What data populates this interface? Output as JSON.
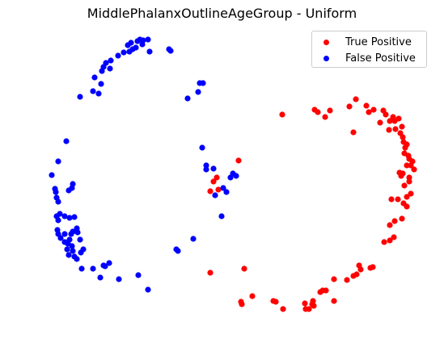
{
  "chart_data": {
    "type": "scatter",
    "title": "MiddlePhalanxOutlineAgeGroup - Uniform",
    "xlabel": "",
    "ylabel": "",
    "axes_visible": false,
    "grid": false,
    "legend_position": "top-right",
    "series": [
      {
        "name": "True Positive",
        "color": "#ff0000",
        "points": [
          [
            349,
            142
          ],
          [
            389,
            136
          ],
          [
            393,
            139
          ],
          [
            408,
            137
          ],
          [
            402,
            145
          ],
          [
            432,
            132
          ],
          [
            440,
            123
          ],
          [
            453,
            131
          ],
          [
            462,
            136
          ],
          [
            456,
            139
          ],
          [
            470,
            152
          ],
          [
            477,
            142
          ],
          [
            482,
            150
          ],
          [
            474,
            137
          ],
          [
            486,
            145
          ],
          [
            489,
            160
          ],
          [
            495,
            165
          ],
          [
            488,
            150
          ],
          [
            493,
            147
          ],
          [
            497,
            157
          ],
          [
            481,
            161
          ],
          [
            498,
            170
          ],
          [
            499,
            176
          ],
          [
            503,
            179
          ],
          [
            501,
            183
          ],
          [
            500,
            190
          ],
          [
            505,
            193
          ],
          [
            506,
            197
          ],
          [
            510,
            200
          ],
          [
            512,
            210
          ],
          [
            508,
            205
          ],
          [
            503,
            205
          ],
          [
            506,
            220
          ],
          [
            498,
            215
          ],
          [
            496,
            218
          ],
          [
            494,
            214
          ],
          [
            500,
            230
          ],
          [
            506,
            225
          ],
          [
            503,
            244
          ],
          [
            508,
            240
          ],
          [
            499,
            252
          ],
          [
            503,
            256
          ],
          [
            492,
            247
          ],
          [
            484,
            247
          ],
          [
            497,
            271
          ],
          [
            488,
            274
          ],
          [
            482,
            279
          ],
          [
            475,
            300
          ],
          [
            482,
            298
          ],
          [
            487,
            294
          ],
          [
            437,
            164
          ],
          [
            295,
            199
          ],
          [
            268,
            220
          ],
          [
            264,
            225
          ],
          [
            260,
            237
          ],
          [
            270,
            235
          ],
          [
            461,
            331
          ],
          [
            458,
            332
          ],
          [
            444,
            329
          ],
          [
            446,
            334
          ],
          [
            441,
            340
          ],
          [
            437,
            342
          ],
          [
            429,
            347
          ],
          [
            413,
            346
          ],
          [
            399,
            360
          ],
          [
            403,
            360
          ],
          [
            396,
            362
          ],
          [
            413,
            373
          ],
          [
            387,
            373
          ],
          [
            386,
            377
          ],
          [
            388,
            379
          ],
          [
            382,
            383
          ],
          [
            378,
            383
          ],
          [
            377,
            376
          ],
          [
            350,
            383
          ],
          [
            341,
            374
          ],
          [
            338,
            373
          ],
          [
            299,
            377
          ],
          [
            298,
            374
          ],
          [
            312,
            367
          ],
          [
            302,
            333
          ],
          [
            260,
            338
          ]
        ]
      },
      {
        "name": "False Positive",
        "color": "#0000ff",
        "points": [
          [
            158,
            56
          ],
          [
            162,
            53
          ],
          [
            170,
            51
          ],
          [
            173,
            49
          ],
          [
            177,
            50
          ],
          [
            183,
            49
          ],
          [
            176,
            55
          ],
          [
            168,
            59
          ],
          [
            164,
            61
          ],
          [
            153,
            65
          ],
          [
            160,
            64
          ],
          [
            146,
            69
          ],
          [
            137,
            75
          ],
          [
            131,
            78
          ],
          [
            128,
            83
          ],
          [
            136,
            85
          ],
          [
            126,
            88
          ],
          [
            117,
            96
          ],
          [
            125,
            104
          ],
          [
            99,
            120
          ],
          [
            115,
            113
          ],
          [
            122,
            116
          ],
          [
            185,
            64
          ],
          [
            209,
            61
          ],
          [
            211,
            63
          ],
          [
            247,
            103
          ],
          [
            251,
            103
          ],
          [
            245,
            114
          ],
          [
            232,
            122
          ],
          [
            82,
            175
          ],
          [
            72,
            200
          ],
          [
            64,
            217
          ],
          [
            68,
            234
          ],
          [
            69,
            238
          ],
          [
            70,
            245
          ],
          [
            72,
            250
          ],
          [
            85,
            236
          ],
          [
            90,
            228
          ],
          [
            89,
            233
          ],
          [
            74,
            265
          ],
          [
            70,
            268
          ],
          [
            72,
            273
          ],
          [
            80,
            268
          ],
          [
            86,
            270
          ],
          [
            92,
            269
          ],
          [
            95,
            283
          ],
          [
            72,
            290
          ],
          [
            71,
            285
          ],
          [
            80,
            290
          ],
          [
            75,
            295
          ],
          [
            80,
            300
          ],
          [
            84,
            302
          ],
          [
            86,
            297
          ],
          [
            88,
            290
          ],
          [
            90,
            287
          ],
          [
            96,
            288
          ],
          [
            99,
            297
          ],
          [
            103,
            309
          ],
          [
            100,
            313
          ],
          [
            95,
            321
          ],
          [
            92,
            318
          ],
          [
            85,
            316
          ],
          [
            83,
            309
          ],
          [
            89,
            305
          ],
          [
            90,
            311
          ],
          [
            101,
            333
          ],
          [
            115,
            333
          ],
          [
            124,
            344
          ],
          [
            130,
            330
          ],
          [
            135,
            326
          ],
          [
            128,
            329
          ],
          [
            147,
            346
          ],
          [
            171,
            341
          ],
          [
            183,
            359
          ],
          [
            218,
            309
          ],
          [
            220,
            311
          ],
          [
            239,
            296
          ],
          [
            250,
            183
          ],
          [
            255,
            205
          ],
          [
            255,
            210
          ],
          [
            264,
            209
          ],
          [
            266,
            242
          ],
          [
            276,
            233
          ],
          [
            280,
            238
          ],
          [
            285,
            220
          ],
          [
            288,
            215
          ],
          [
            292,
            218
          ],
          [
            274,
            268
          ]
        ]
      }
    ]
  }
}
